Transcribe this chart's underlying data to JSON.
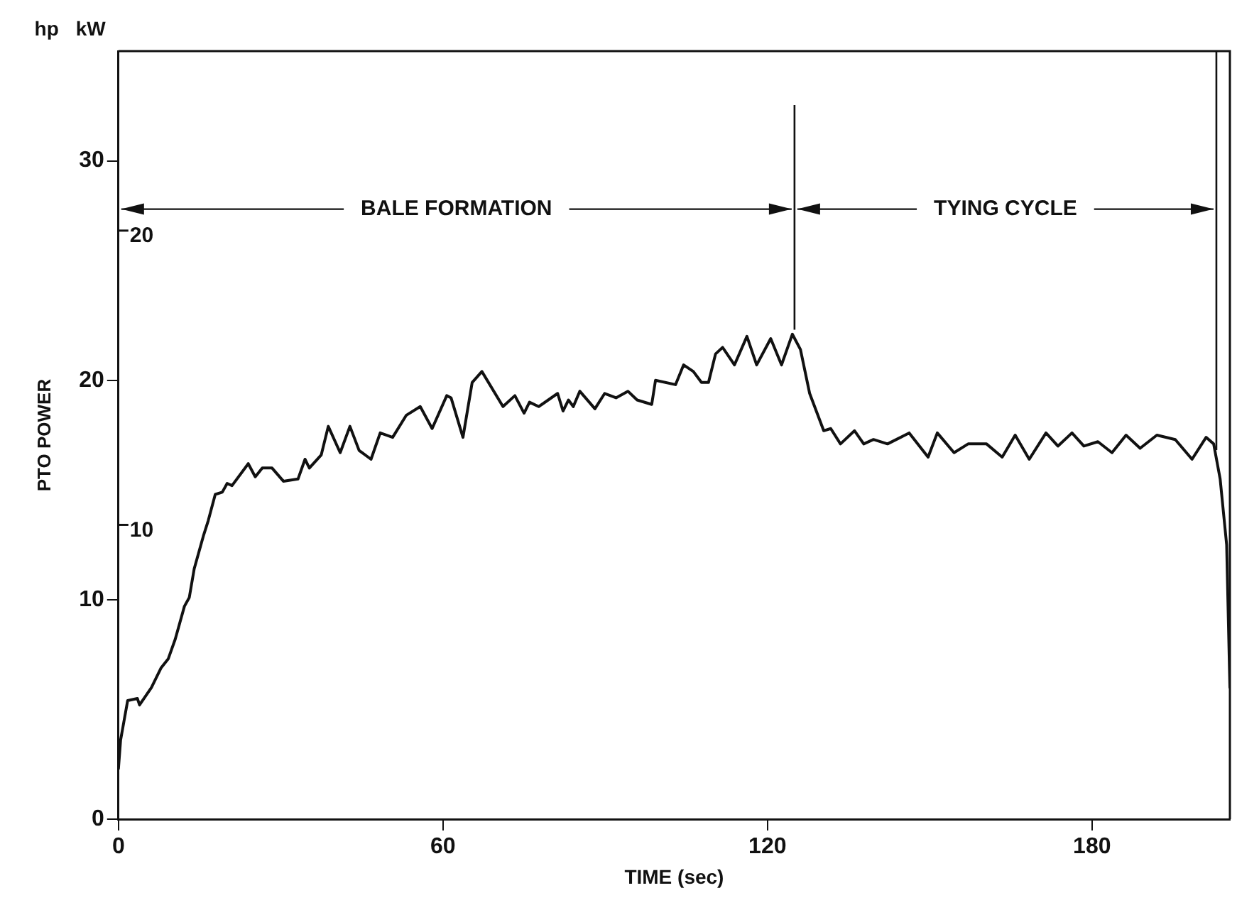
{
  "chart_data": {
    "type": "line",
    "xlabel": "TIME (sec)",
    "ylabel": "PTO POWER",
    "annotations": [
      "hp",
      "kW",
      {
        "text": "BALE FORMATION",
        "x": 125,
        "y": 27.8
      },
      {
        "text": "TYING CYCLE",
        "x": 203,
        "y": 27.8
      }
    ],
    "x": [
      0,
      0.4,
      1.7,
      3.5,
      3.9,
      6.1,
      7.9,
      9.2,
      10.5,
      12.2,
      13.1,
      14,
      15.7,
      16.6,
      17.9,
      19.2,
      20.1,
      21,
      24,
      25.3,
      26.6,
      28.4,
      30.5,
      33.2,
      34.5,
      35.3,
      37.5,
      38.8,
      41,
      42.8,
      44.5,
      46.7,
      48.4,
      50.7,
      53.2,
      55.8,
      58,
      60.7,
      61.5,
      63.7,
      65.4,
      67.2,
      71.1,
      73.3,
      75,
      76,
      77.7,
      81.2,
      82.2,
      83.2,
      84.1,
      85.3,
      88.1,
      89.9,
      92,
      94.2,
      95.9,
      98.6,
      99.3,
      103,
      104.5,
      106.3,
      107.8,
      109.1,
      110.4,
      111.7,
      113.9,
      116.2,
      118,
      120.6,
      122.6,
      124.6,
      126.1,
      127.8,
      130.4,
      131.7,
      133.5,
      136.1,
      137.8,
      139.6,
      142.2,
      146.2,
      149.7,
      151.4,
      154.5,
      157.1,
      160.5,
      163.4,
      165.8,
      168.4,
      171.5,
      173.7,
      176.3,
      178.5,
      181.1,
      183.7,
      186.3,
      188.9,
      192,
      195.4,
      198.5,
      201.1,
      202.5,
      203.7,
      204.9,
      205.5
    ],
    "series": [
      {
        "color": "#111111",
        "values": [
          2.3,
          3.6,
          5.4,
          5.5,
          5.2,
          6.0,
          6.9,
          7.3,
          8.2,
          9.7,
          10.1,
          11.4,
          12.9,
          13.6,
          14.8,
          14.9,
          15.3,
          15.2,
          16.2,
          15.6,
          16.0,
          16.0,
          15.4,
          15.5,
          16.4,
          16.0,
          16.6,
          17.9,
          16.7,
          17.9,
          16.8,
          16.4,
          17.6,
          17.4,
          18.4,
          18.8,
          17.8,
          19.3,
          19.2,
          17.4,
          19.9,
          20.4,
          18.8,
          19.3,
          18.5,
          19.0,
          18.8,
          19.4,
          18.6,
          19.1,
          18.8,
          19.5,
          18.7,
          19.4,
          19.2,
          19.5,
          19.1,
          18.9,
          20.0,
          19.8,
          20.7,
          20.4,
          19.9,
          19.9,
          21.2,
          21.5,
          20.7,
          22.0,
          20.7,
          21.9,
          20.7,
          22.1,
          21.4,
          19.4,
          17.7,
          17.8,
          17.1,
          17.7,
          17.1,
          17.3,
          17.1,
          17.6,
          16.5,
          17.6,
          16.7,
          17.1,
          17.1,
          16.5,
          17.5,
          16.4,
          17.6,
          17.0,
          17.6,
          17.0,
          17.2,
          16.7,
          17.5,
          16.9,
          17.5,
          17.3,
          16.4,
          17.4,
          17.1,
          15.5,
          12.5,
          6.0
        ]
      }
    ],
    "xlim": [
      0,
      205.5
    ],
    "xticks": [
      0,
      60,
      120,
      180
    ],
    "ylim": [
      0,
      35
    ],
    "yticks": [
      0,
      10,
      20,
      30
    ],
    "y2lim": [
      0,
      26.1
    ],
    "y2ticks": [
      10,
      20
    ],
    "ref_lines": [
      {
        "axis": "x",
        "value": 125
      },
      {
        "axis": "x",
        "value": 203
      }
    ],
    "grid": false,
    "legend": false,
    "marker": "none",
    "line_style": "solid"
  }
}
